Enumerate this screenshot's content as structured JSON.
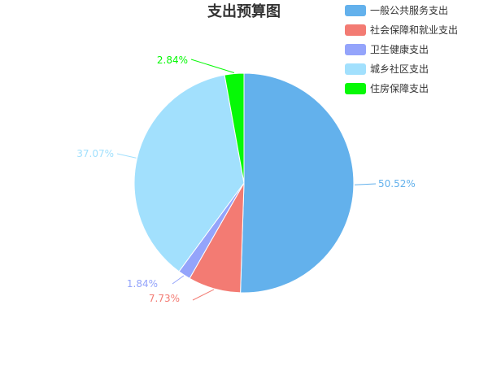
{
  "chart_data": {
    "type": "pie",
    "title": "支出预算图",
    "legend_position": "top-right",
    "slices": [
      {
        "name": "一般公共服务支出",
        "value": 50.52,
        "label": "50.52%",
        "color": "#63B1EC"
      },
      {
        "name": "社会保障和就业支出",
        "value": 7.73,
        "label": "7.73%",
        "color": "#F37B73"
      },
      {
        "name": "卫生健康支出",
        "value": 1.84,
        "label": "1.84%",
        "color": "#94A4FB"
      },
      {
        "name": "城乡社区支出",
        "value": 37.07,
        "label": "37.07%",
        "color": "#A2E0FD"
      },
      {
        "name": "住房保障支出",
        "value": 2.84,
        "label": "2.84%",
        "color": "#06F906"
      }
    ]
  }
}
